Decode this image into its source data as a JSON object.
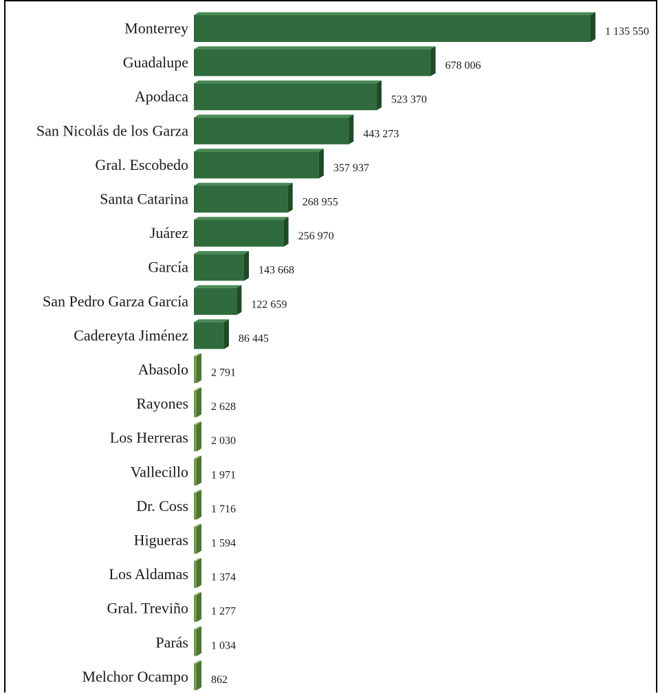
{
  "chart_data": {
    "type": "bar",
    "orientation": "horizontal",
    "categories": [
      "Monterrey",
      "Guadalupe",
      "Apodaca",
      "San Nicolás de los Garza",
      "Gral. Escobedo",
      "Santa Catarina",
      "Juárez",
      "García",
      "San Pedro Garza García",
      "Cadereyta Jiménez",
      "Abasolo",
      "Rayones",
      "Los Herreras",
      "Vallecillo",
      "Dr. Coss",
      "Higueras",
      "Los Aldamas",
      "Gral. Treviño",
      "Parás",
      "Melchor Ocampo"
    ],
    "values": [
      1135550,
      678006,
      523370,
      443273,
      357937,
      268955,
      256970,
      143668,
      122659,
      86445,
      2791,
      2628,
      2030,
      1971,
      1716,
      1594,
      1374,
      1277,
      1034,
      862
    ],
    "value_labels": [
      "1 135 550",
      "678 006",
      "523 370",
      "443 273",
      "357 937",
      "268 955",
      "256 970",
      "143 668",
      "122 659",
      "86 445",
      "2 791",
      "2 628",
      "2 030",
      "1 971",
      "1 716",
      "1 594",
      "1 374",
      "1 277",
      "1 034",
      "862"
    ],
    "title": "",
    "xlabel": "",
    "ylabel": "",
    "grid": false,
    "legend": "none",
    "style": "3d",
    "colors": {
      "large_bar_front": "#2f6b3c",
      "large_bar_top": "#4a8a55",
      "large_bar_side": "#1d4a27",
      "small_bar_front": "#6e9a4a",
      "small_bar_top": "#9cc27a",
      "small_bar_side": "#4e7432"
    }
  }
}
